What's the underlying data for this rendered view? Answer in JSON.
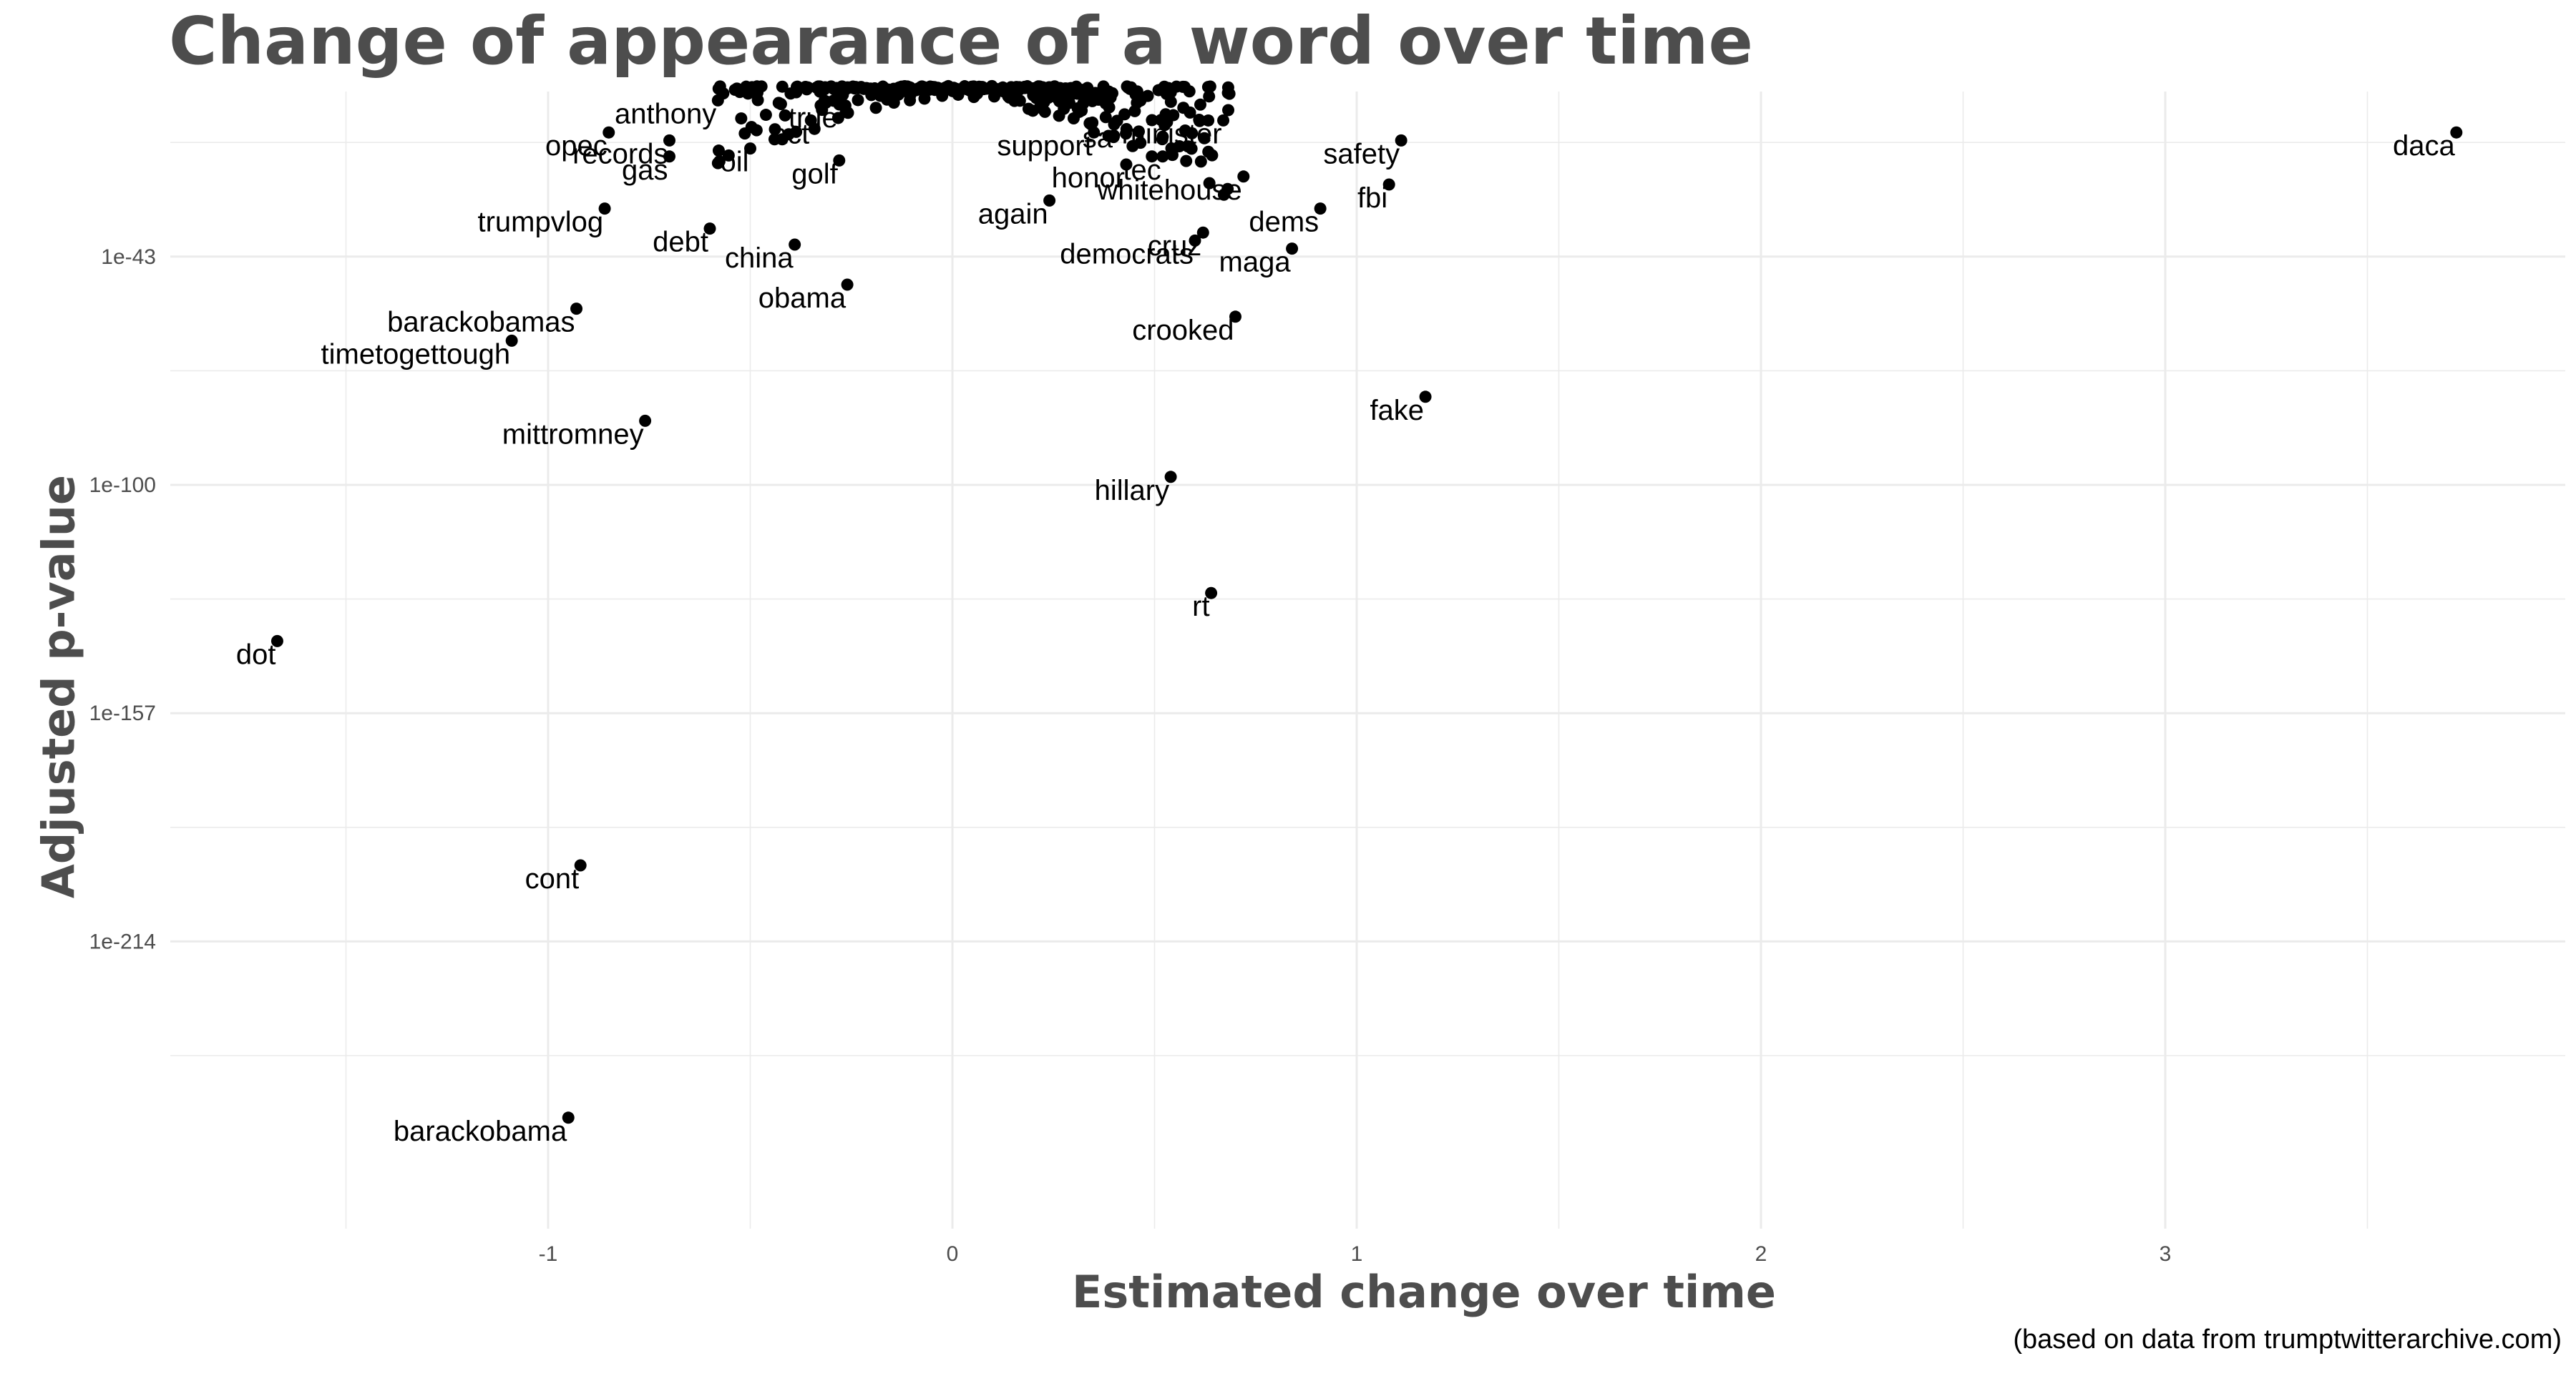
{
  "chart_data": {
    "type": "scatter",
    "title": "Change of appearance of a word over time",
    "xlabel": "Estimated change over time",
    "ylabel": "Adjusted p-value",
    "caption": "(based on data from trumptwitterarchive.com)",
    "x_ticks": [
      "-1",
      "0",
      "1",
      "2",
      "3"
    ],
    "x_tick_values": [
      -1,
      0,
      1,
      2,
      3
    ],
    "y_ticks": [
      "1e-43",
      "1e-100",
      "1e-157",
      "1e-214"
    ],
    "y_tick_exponents": [
      -43,
      -100,
      -157,
      -214
    ],
    "xlim": [
      -1.95,
      3.98
    ],
    "y_log10_lim": [
      0,
      -262
    ],
    "grid": true,
    "labeled_points": [
      {
        "label": "daca",
        "x": 3.72,
        "y_log10": -12
      },
      {
        "label": "safety",
        "x": 1.11,
        "y_log10": -14
      },
      {
        "label": "fbi",
        "x": 1.08,
        "y_log10": -25
      },
      {
        "label": "dems",
        "x": 0.91,
        "y_log10": -31
      },
      {
        "label": "maga",
        "x": 0.84,
        "y_log10": -41
      },
      {
        "label": "whitehouse",
        "x": 0.72,
        "y_log10": -23
      },
      {
        "label": "minister",
        "x": 0.67,
        "y_log10": -9
      },
      {
        "label": "crooked",
        "x": 0.7,
        "y_log10": -58
      },
      {
        "label": "democrats",
        "x": 0.6,
        "y_log10": -39
      },
      {
        "label": "cruz",
        "x": 0.62,
        "y_log10": -37
      },
      {
        "label": "tec",
        "x": 0.52,
        "y_log10": -18
      },
      {
        "label": "honor",
        "x": 0.43,
        "y_log10": -20
      },
      {
        "label": "support",
        "x": 0.35,
        "y_log10": -12
      },
      {
        "label": "sa",
        "x": 0.4,
        "y_log10": -10
      },
      {
        "label": "again",
        "x": 0.24,
        "y_log10": -29
      },
      {
        "label": "fake",
        "x": 1.17,
        "y_log10": -78
      },
      {
        "label": "hillary",
        "x": 0.54,
        "y_log10": -98
      },
      {
        "label": "rt",
        "x": 0.64,
        "y_log10": -127
      },
      {
        "label": "obama",
        "x": -0.26,
        "y_log10": -50
      },
      {
        "label": "china",
        "x": -0.39,
        "y_log10": -40
      },
      {
        "label": "golf",
        "x": -0.28,
        "y_log10": -19
      },
      {
        "label": "oil",
        "x": -0.5,
        "y_log10": -16
      },
      {
        "label": "debt",
        "x": -0.6,
        "y_log10": -36
      },
      {
        "label": "true",
        "x": -0.28,
        "y_log10": -5
      },
      {
        "label": "act",
        "x": -0.35,
        "y_log10": -9
      },
      {
        "label": "gas",
        "x": -0.7,
        "y_log10": -18
      },
      {
        "label": "records",
        "x": -0.7,
        "y_log10": -14
      },
      {
        "label": "anthony",
        "x": -0.58,
        "y_log10": -4
      },
      {
        "label": "opec",
        "x": -0.85,
        "y_log10": -12
      },
      {
        "label": "trumpvlog",
        "x": -0.86,
        "y_log10": -31
      },
      {
        "label": "barackobamas",
        "x": -0.93,
        "y_log10": -56
      },
      {
        "label": "timetogettough",
        "x": -1.09,
        "y_log10": -64
      },
      {
        "label": "mittromney",
        "x": -0.76,
        "y_log10": -84
      },
      {
        "label": "dot",
        "x": -1.67,
        "y_log10": -139
      },
      {
        "label": "cont",
        "x": -0.92,
        "y_log10": -195
      },
      {
        "label": "barackobama",
        "x": -0.95,
        "y_log10": -258
      }
    ]
  }
}
